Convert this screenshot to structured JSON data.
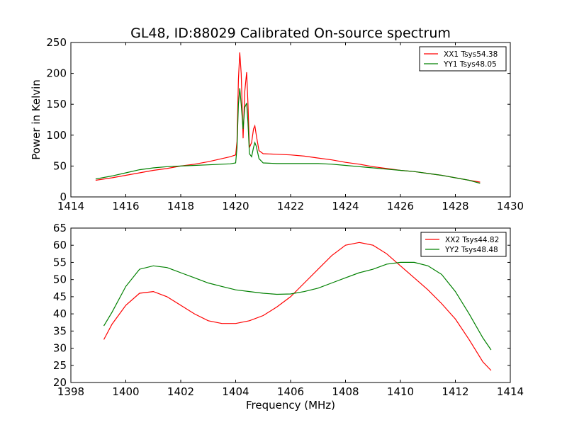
{
  "title": "GL48, ID:88029 Calibrated On-source spectrum",
  "colors": {
    "xx": "#ff0000",
    "yy": "#008000"
  },
  "chart_data": [
    {
      "type": "line",
      "ylabel": "Power in Kelvin",
      "xlabel": "",
      "xlim": [
        1414,
        1430
      ],
      "ylim": [
        0,
        250
      ],
      "xticks": [
        1414,
        1416,
        1418,
        1420,
        1422,
        1424,
        1426,
        1428,
        1430
      ],
      "yticks": [
        0,
        50,
        100,
        150,
        200,
        250
      ],
      "legend_position": "top-right",
      "grid": false,
      "series": [
        {
          "name": "XX1 Tsys54.38",
          "color": "#ff0000",
          "points": [
            [
              1414.9,
              27
            ],
            [
              1415.5,
              31
            ],
            [
              1416,
              35
            ],
            [
              1416.5,
              39
            ],
            [
              1417,
              43
            ],
            [
              1417.5,
              46
            ],
            [
              1418,
              50
            ],
            [
              1418.5,
              53
            ],
            [
              1419,
              57
            ],
            [
              1419.5,
              62
            ],
            [
              1419.8,
              65
            ],
            [
              1420.0,
              68
            ],
            [
              1420.05,
              90
            ],
            [
              1420.1,
              190
            ],
            [
              1420.15,
              234
            ],
            [
              1420.2,
              200
            ],
            [
              1420.27,
              95
            ],
            [
              1420.33,
              170
            ],
            [
              1420.4,
              202
            ],
            [
              1420.45,
              150
            ],
            [
              1420.5,
              80
            ],
            [
              1420.58,
              88
            ],
            [
              1420.65,
              110
            ],
            [
              1420.7,
              115
            ],
            [
              1420.75,
              100
            ],
            [
              1420.85,
              75
            ],
            [
              1421,
              70
            ],
            [
              1421.5,
              69
            ],
            [
              1422,
              68
            ],
            [
              1422.5,
              66
            ],
            [
              1423,
              63
            ],
            [
              1423.5,
              60
            ],
            [
              1424,
              56
            ],
            [
              1424.5,
              53
            ],
            [
              1425,
              49
            ],
            [
              1425.5,
              46
            ],
            [
              1426,
              43
            ],
            [
              1426.5,
              41
            ],
            [
              1427,
              38
            ],
            [
              1427.5,
              35
            ],
            [
              1428,
              31
            ],
            [
              1428.5,
              27
            ],
            [
              1428.9,
              24
            ]
          ]
        },
        {
          "name": "YY1 Tsys48.05",
          "color": "#008000",
          "points": [
            [
              1414.9,
              29
            ],
            [
              1415.5,
              34
            ],
            [
              1416,
              39
            ],
            [
              1416.5,
              44
            ],
            [
              1417,
              47
            ],
            [
              1417.5,
              49
            ],
            [
              1418,
              50
            ],
            [
              1418.5,
              51
            ],
            [
              1419,
              52
            ],
            [
              1419.5,
              53
            ],
            [
              1419.8,
              53.5
            ],
            [
              1420.0,
              55
            ],
            [
              1420.05,
              80
            ],
            [
              1420.1,
              150
            ],
            [
              1420.15,
              176
            ],
            [
              1420.2,
              150
            ],
            [
              1420.27,
              110
            ],
            [
              1420.33,
              145
            ],
            [
              1420.4,
              152
            ],
            [
              1420.45,
              120
            ],
            [
              1420.5,
              70
            ],
            [
              1420.58,
              65
            ],
            [
              1420.65,
              80
            ],
            [
              1420.7,
              88
            ],
            [
              1420.75,
              82
            ],
            [
              1420.85,
              62
            ],
            [
              1421,
              55
            ],
            [
              1421.5,
              54
            ],
            [
              1422,
              54
            ],
            [
              1422.5,
              54
            ],
            [
              1423,
              54
            ],
            [
              1423.5,
              53
            ],
            [
              1424,
              51
            ],
            [
              1424.5,
              49
            ],
            [
              1425,
              47
            ],
            [
              1425.5,
              45
            ],
            [
              1426,
              43
            ],
            [
              1426.5,
              41
            ],
            [
              1427,
              38
            ],
            [
              1427.5,
              35
            ],
            [
              1428,
              31
            ],
            [
              1428.5,
              27
            ],
            [
              1428.9,
              22
            ]
          ]
        }
      ]
    },
    {
      "type": "line",
      "ylabel": "",
      "xlabel": "Frequency (MHz)",
      "xlim": [
        1398,
        1414
      ],
      "ylim": [
        20,
        65
      ],
      "xticks": [
        1398,
        1400,
        1402,
        1404,
        1406,
        1408,
        1410,
        1412,
        1414
      ],
      "yticks": [
        20,
        25,
        30,
        35,
        40,
        45,
        50,
        55,
        60,
        65
      ],
      "legend_position": "top-right",
      "grid": false,
      "series": [
        {
          "name": "XX2 Tsys44.82",
          "color": "#ff0000",
          "points": [
            [
              1399.2,
              32.5
            ],
            [
              1399.5,
              37
            ],
            [
              1400,
              42.5
            ],
            [
              1400.5,
              46
            ],
            [
              1401,
              46.5
            ],
            [
              1401.5,
              45
            ],
            [
              1402,
              42.5
            ],
            [
              1402.5,
              40
            ],
            [
              1403,
              38
            ],
            [
              1403.5,
              37.2
            ],
            [
              1404,
              37.2
            ],
            [
              1404.5,
              38
            ],
            [
              1405,
              39.5
            ],
            [
              1405.5,
              42
            ],
            [
              1406,
              45
            ],
            [
              1406.5,
              49
            ],
            [
              1407,
              53
            ],
            [
              1407.5,
              57
            ],
            [
              1408,
              60
            ],
            [
              1408.5,
              60.8
            ],
            [
              1409,
              60
            ],
            [
              1409.5,
              57.5
            ],
            [
              1410,
              54
            ],
            [
              1410.5,
              50.5
            ],
            [
              1411,
              47
            ],
            [
              1411.5,
              43
            ],
            [
              1412,
              38.5
            ],
            [
              1412.5,
              32.5
            ],
            [
              1413,
              26
            ],
            [
              1413.3,
              23.5
            ]
          ]
        },
        {
          "name": "YY2 Tsys48.48",
          "color": "#008000",
          "points": [
            [
              1399.2,
              36.5
            ],
            [
              1399.5,
              40.5
            ],
            [
              1400,
              48
            ],
            [
              1400.5,
              53
            ],
            [
              1401,
              54
            ],
            [
              1401.5,
              53.5
            ],
            [
              1402,
              52
            ],
            [
              1402.5,
              50.5
            ],
            [
              1403,
              49
            ],
            [
              1403.5,
              48
            ],
            [
              1404,
              47
            ],
            [
              1404.5,
              46.5
            ],
            [
              1405,
              46
            ],
            [
              1405.5,
              45.7
            ],
            [
              1406,
              45.8
            ],
            [
              1406.5,
              46.5
            ],
            [
              1407,
              47.5
            ],
            [
              1407.5,
              49
            ],
            [
              1408,
              50.5
            ],
            [
              1408.5,
              52
            ],
            [
              1409,
              53
            ],
            [
              1409.5,
              54.5
            ],
            [
              1410,
              55
            ],
            [
              1410.5,
              55
            ],
            [
              1411,
              54
            ],
            [
              1411.5,
              51.5
            ],
            [
              1412,
              46.5
            ],
            [
              1412.5,
              40
            ],
            [
              1413,
              33
            ],
            [
              1413.3,
              29.5
            ]
          ]
        }
      ]
    }
  ]
}
